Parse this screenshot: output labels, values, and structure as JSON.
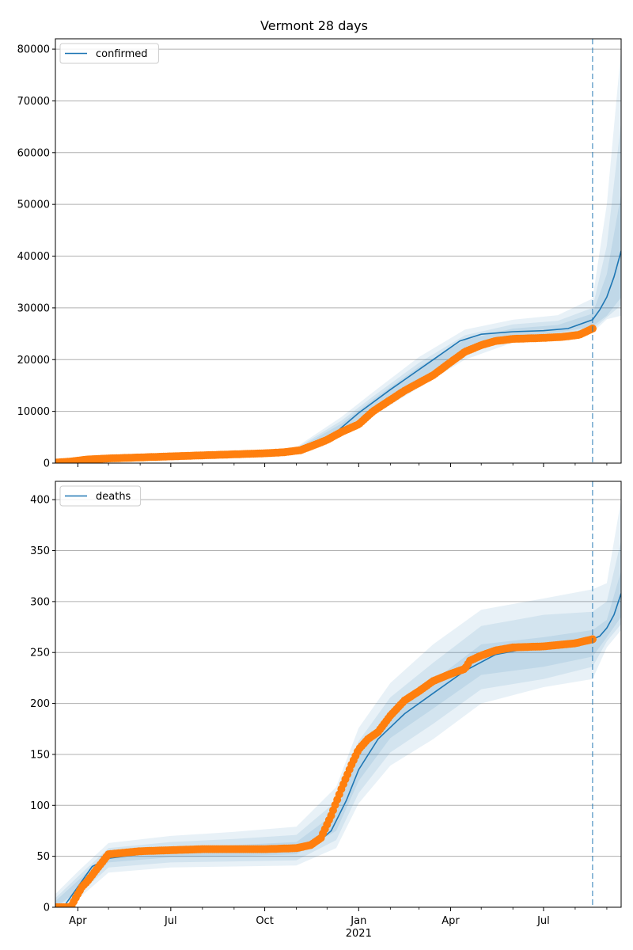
{
  "figure": {
    "title": "Vermont 28 days"
  },
  "colors": {
    "model_line": "#1f77b4",
    "observed": "#ff7f0e",
    "band": "#1f77b4",
    "grid": "#b0b0b0",
    "forecast_marker": "#1f77b4"
  },
  "x_axis": {
    "start": "2020-03-10",
    "end": "2021-09-15",
    "major_ticks": [
      {
        "date": "2020-04-01",
        "label": "Apr",
        "sublabel": ""
      },
      {
        "date": "2020-07-01",
        "label": "Jul",
        "sublabel": ""
      },
      {
        "date": "2020-10-01",
        "label": "Oct",
        "sublabel": ""
      },
      {
        "date": "2021-01-01",
        "label": "Jan",
        "sublabel": "2021"
      },
      {
        "date": "2021-04-01",
        "label": "Apr",
        "sublabel": ""
      },
      {
        "date": "2021-07-01",
        "label": "Jul",
        "sublabel": ""
      }
    ],
    "minor_ticks": [
      "2020-05-01",
      "2020-06-01",
      "2020-08-01",
      "2020-09-01",
      "2020-11-01",
      "2020-12-01",
      "2021-02-01",
      "2021-03-01",
      "2021-05-01",
      "2021-06-01",
      "2021-08-01",
      "2021-09-01"
    ],
    "forecast_start": "2021-08-18"
  },
  "chart_data": [
    {
      "type": "line",
      "legend": "confirmed",
      "legend_position": "top-left",
      "grid": "horizontal",
      "ylim": [
        0,
        82000
      ],
      "yticks": [
        0,
        10000,
        20000,
        30000,
        40000,
        50000,
        60000,
        70000,
        80000
      ],
      "model": {
        "x": [
          "2020-03-10",
          "2020-04-01",
          "2020-05-01",
          "2020-07-01",
          "2020-09-01",
          "2020-10-15",
          "2020-11-10",
          "2020-11-25",
          "2020-12-10",
          "2021-01-01",
          "2021-02-01",
          "2021-03-15",
          "2021-04-10",
          "2021-05-01",
          "2021-06-01",
          "2021-07-01",
          "2021-07-25",
          "2021-08-18",
          "2021-08-25",
          "2021-09-01",
          "2021-09-08",
          "2021-09-15"
        ],
        "y": [
          200,
          700,
          1000,
          1300,
          1700,
          2000,
          2700,
          3900,
          6000,
          9700,
          14200,
          20000,
          23600,
          24900,
          25400,
          25600,
          26000,
          27700,
          29600,
          32100,
          36000,
          41000
        ]
      },
      "bands": {
        "x": [
          "2020-11-01",
          "2020-12-15",
          "2021-01-15",
          "2021-03-01",
          "2021-04-15",
          "2021-06-01",
          "2021-07-15",
          "2021-08-18",
          "2021-09-01",
          "2021-09-15"
        ],
        "inner": [
          [
            2200,
            2700
          ],
          [
            6200,
            7600
          ],
          [
            10500,
            12300
          ],
          [
            16200,
            18600
          ],
          [
            21800,
            23800
          ],
          [
            24500,
            26000
          ],
          [
            25200,
            26700
          ],
          [
            26400,
            28900
          ],
          [
            28500,
            36500
          ],
          [
            32000,
            52000
          ]
        ],
        "middle": [
          [
            2100,
            2900
          ],
          [
            5800,
            8200
          ],
          [
            9900,
            12900
          ],
          [
            15400,
            19400
          ],
          [
            21000,
            24700
          ],
          [
            24000,
            26800
          ],
          [
            24800,
            27500
          ],
          [
            25800,
            30000
          ],
          [
            28200,
            42000
          ],
          [
            30500,
            66000
          ]
        ],
        "outer": [
          [
            1900,
            3100
          ],
          [
            5200,
            8900
          ],
          [
            9200,
            13700
          ],
          [
            14600,
            20500
          ],
          [
            20000,
            25800
          ],
          [
            23300,
            27700
          ],
          [
            24200,
            28600
          ],
          [
            25200,
            31800
          ],
          [
            27800,
            50000
          ],
          [
            28500,
            80000
          ]
        ]
      },
      "observed": {
        "x": [
          "2020-03-10",
          "2020-03-25",
          "2020-04-10",
          "2020-05-01",
          "2020-06-01",
          "2020-07-01",
          "2020-08-01",
          "2020-09-01",
          "2020-10-01",
          "2020-10-20",
          "2020-11-05",
          "2020-11-20",
          "2020-12-01",
          "2020-12-15",
          "2021-01-01",
          "2021-01-15",
          "2021-02-01",
          "2021-02-15",
          "2021-03-01",
          "2021-03-15",
          "2021-04-01",
          "2021-04-15",
          "2021-05-01",
          "2021-05-15",
          "2021-06-01",
          "2021-07-01",
          "2021-07-20",
          "2021-08-05",
          "2021-08-18"
        ],
        "y": [
          100,
          300,
          700,
          900,
          1100,
          1300,
          1500,
          1700,
          1900,
          2100,
          2500,
          3600,
          4500,
          6000,
          7500,
          10000,
          12200,
          14000,
          15500,
          17000,
          19500,
          21500,
          22800,
          23600,
          24000,
          24200,
          24400,
          24800,
          26000
        ]
      }
    },
    {
      "type": "line",
      "legend": "deaths",
      "legend_position": "top-left",
      "grid": "horizontal",
      "ylim": [
        0,
        418
      ],
      "yticks": [
        0,
        50,
        100,
        150,
        200,
        250,
        300,
        350,
        400
      ],
      "model": {
        "x": [
          "2020-03-10",
          "2020-03-20",
          "2020-04-01",
          "2020-04-15",
          "2020-05-01",
          "2020-06-01",
          "2020-07-01",
          "2020-09-01",
          "2020-11-01",
          "2020-11-20",
          "2020-12-05",
          "2020-12-20",
          "2021-01-01",
          "2021-01-20",
          "2021-02-15",
          "2021-03-15",
          "2021-04-15",
          "2021-05-15",
          "2021-06-15",
          "2021-07-15",
          "2021-08-18",
          "2021-08-25",
          "2021-09-01",
          "2021-09-08",
          "2021-09-15"
        ],
        "y": [
          0,
          3,
          20,
          40,
          48,
          52,
          54,
          56,
          58,
          62,
          75,
          105,
          135,
          165,
          190,
          210,
          232,
          248,
          254,
          257,
          263,
          266,
          274,
          287,
          308
        ]
      },
      "bands": {
        "x": [
          "2020-03-10",
          "2020-04-01",
          "2020-05-01",
          "2020-07-01",
          "2020-09-01",
          "2020-11-01",
          "2020-12-10",
          "2021-01-01",
          "2021-02-01",
          "2021-03-15",
          "2021-05-01",
          "2021-07-01",
          "2021-08-18",
          "2021-09-01",
          "2021-09-15"
        ],
        "inner": [
          [
            0,
            6
          ],
          [
            16,
            26
          ],
          [
            44,
            54
          ],
          [
            49,
            59
          ],
          [
            50,
            61
          ],
          [
            52,
            64
          ],
          [
            75,
            93
          ],
          [
            124,
            150
          ],
          [
            166,
            192
          ],
          [
            195,
            222
          ],
          [
            228,
            258
          ],
          [
            236,
            265
          ],
          [
            246,
            272
          ],
          [
            265,
            282
          ],
          [
            285,
            330
          ]
        ],
        "middle": [
          [
            0,
            9
          ],
          [
            12,
            30
          ],
          [
            39,
            58
          ],
          [
            44,
            64
          ],
          [
            45,
            67
          ],
          [
            46,
            71
          ],
          [
            66,
            104
          ],
          [
            112,
            163
          ],
          [
            152,
            206
          ],
          [
            180,
            240
          ],
          [
            214,
            276
          ],
          [
            224,
            287
          ],
          [
            236,
            290
          ],
          [
            261,
            300
          ],
          [
            278,
            360
          ]
        ],
        "outer": [
          [
            0,
            13
          ],
          [
            8,
            35
          ],
          [
            34,
            63
          ],
          [
            39,
            70
          ],
          [
            40,
            74
          ],
          [
            41,
            79
          ],
          [
            58,
            118
          ],
          [
            102,
            176
          ],
          [
            139,
            220
          ],
          [
            165,
            258
          ],
          [
            200,
            292
          ],
          [
            216,
            303
          ],
          [
            224,
            312
          ],
          [
            255,
            318
          ],
          [
            272,
            400
          ]
        ]
      },
      "observed": {
        "x": [
          "2020-03-10",
          "2020-03-25",
          "2020-04-01",
          "2020-04-05",
          "2020-04-10",
          "2020-04-20",
          "2020-05-01",
          "2020-06-01",
          "2020-07-01",
          "2020-08-01",
          "2020-09-01",
          "2020-10-01",
          "2020-11-01",
          "2020-11-15",
          "2020-11-25",
          "2020-12-05",
          "2020-12-15",
          "2020-12-25",
          "2021-01-01",
          "2021-01-10",
          "2021-01-20",
          "2021-02-01",
          "2021-02-15",
          "2021-03-01",
          "2021-03-15",
          "2021-04-01",
          "2021-04-15",
          "2021-04-20",
          "2021-05-01",
          "2021-05-15",
          "2021-06-01",
          "2021-07-01",
          "2021-08-01",
          "2021-08-18"
        ],
        "y": [
          0,
          0,
          13,
          20,
          25,
          38,
          52,
          55,
          56,
          57,
          57,
          57,
          58,
          61,
          68,
          90,
          116,
          140,
          155,
          165,
          172,
          188,
          203,
          212,
          222,
          229,
          234,
          242,
          247,
          252,
          255,
          256,
          259,
          263
        ]
      }
    }
  ]
}
